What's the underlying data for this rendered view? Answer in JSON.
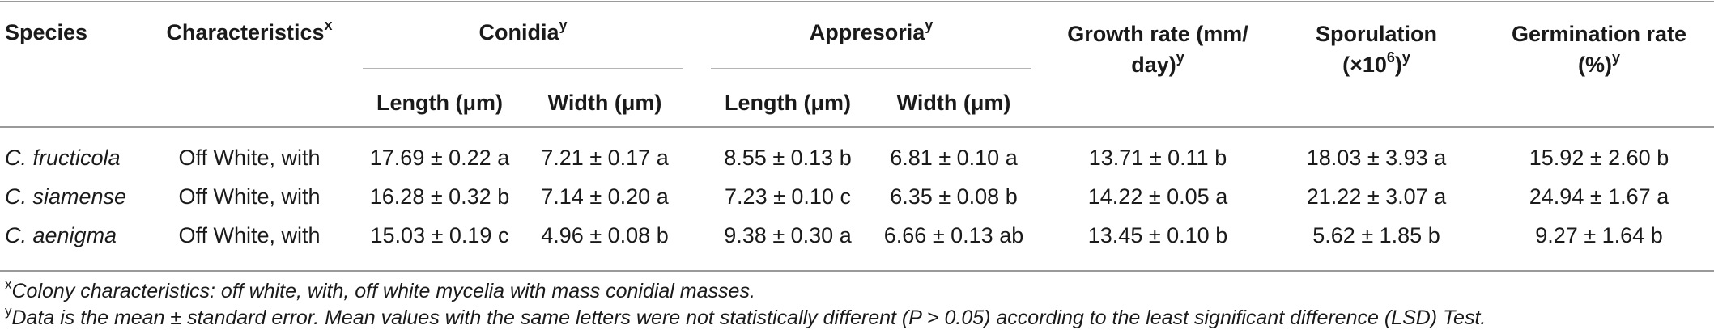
{
  "headers": {
    "species": "Species",
    "characteristics": "Characteristics",
    "characteristics_sup": "x",
    "conidia": "Conidia",
    "conidia_sup": "y",
    "appresoria": "Appresoria",
    "appresoria_sup": "y",
    "growth_line1": "Growth rate (mm/",
    "growth_line2": "day)",
    "growth_sup": "y",
    "sporulation_line1": "Sporulation",
    "sporulation_line2a": "(×10",
    "sporulation_exp": "6",
    "sporulation_line2b": ")",
    "sporulation_sup": "y",
    "germination_line1": "Germination rate",
    "germination_line2": "(%)",
    "germination_sup": "y",
    "length": "Length (μm)",
    "width": "Width (μm)"
  },
  "rows": [
    {
      "species": "C. fructicola",
      "characteristics": "Off White, with",
      "conidia_length": "17.69 ± 0.22 a",
      "conidia_width": "7.21 ± 0.17 a",
      "appresoria_length": "8.55 ± 0.13 b",
      "appresoria_width": "6.81 ± 0.10 a",
      "growth": "13.71 ± 0.11 b",
      "sporulation": "18.03 ± 3.93 a",
      "germination": "15.92 ± 2.60 b"
    },
    {
      "species": "C. siamense",
      "characteristics": "Off White, with",
      "conidia_length": "16.28 ± 0.32 b",
      "conidia_width": "7.14 ± 0.20 a",
      "appresoria_length": "7.23 ± 0.10 c",
      "appresoria_width": "6.35 ± 0.08 b",
      "growth": "14.22 ± 0.05 a",
      "sporulation": "21.22 ± 3.07 a",
      "germination": "24.94 ± 1.67 a"
    },
    {
      "species": "C. aenigma",
      "characteristics": "Off White, with",
      "conidia_length": "15.03 ± 0.19 c",
      "conidia_width": "4.96 ± 0.08 b",
      "appresoria_length": "9.38 ± 0.30 a",
      "appresoria_width": "6.66 ± 0.13 ab",
      "growth": "13.45 ± 0.10 b",
      "sporulation": "5.62 ± 1.85 b",
      "germination": "9.27 ± 1.64 b"
    }
  ],
  "footnotes": {
    "x_mark": "x",
    "x_text": "Colony characteristics: off white, with, off white mycelia with mass conidial masses.",
    "y_mark": "y",
    "y_text": "Data is the mean ± standard error. Mean values with the same letters were not statistically different (P > 0.05) according to the least significant difference (LSD) Test."
  }
}
